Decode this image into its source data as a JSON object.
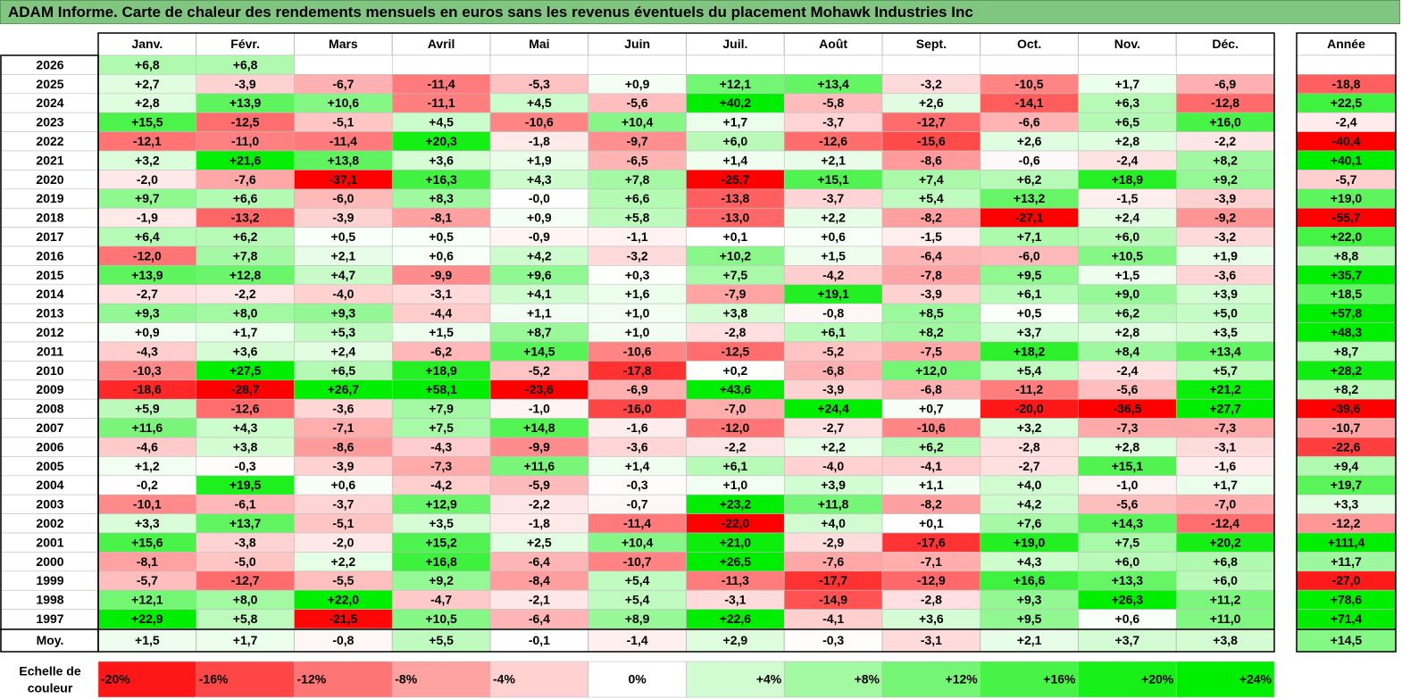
{
  "title": "ADAM Informe. Carte de chaleur des rendements mensuels en euros sans les revenus éventuels du placement Mohawk Industries Inc",
  "chart_data": {
    "type": "heatmap",
    "title": "ADAM Informe. Carte de chaleur des rendements mensuels en euros sans les revenus éventuels du placement Mohawk Industries Inc",
    "months": [
      "Janv.",
      "Févr.",
      "Mars",
      "Avril",
      "Mai",
      "Juin",
      "Juil.",
      "Août",
      "Sept.",
      "Oct.",
      "Nov.",
      "Déc."
    ],
    "year_header": "Année",
    "rows": [
      {
        "year": "2026",
        "values": [
          "+6,8",
          "+6,8",
          null,
          null,
          null,
          null,
          null,
          null,
          null,
          null,
          null,
          null
        ],
        "annual": null
      },
      {
        "year": "2025",
        "values": [
          "+2,7",
          "-3,9",
          "-6,7",
          "-11,4",
          "-5,3",
          "+0,9",
          "+12,1",
          "+13,4",
          "-3,2",
          "-10,5",
          "+1,7",
          "-6,9"
        ],
        "annual": "-18,8"
      },
      {
        "year": "2024",
        "values": [
          "+2,8",
          "+13,9",
          "+10,6",
          "-11,1",
          "+4,5",
          "-5,6",
          "+40,2",
          "-5,8",
          "+2,6",
          "-14,1",
          "+6,3",
          "-12,8"
        ],
        "annual": "+22,5"
      },
      {
        "year": "2023",
        "values": [
          "+15,5",
          "-12,5",
          "-5,1",
          "+4,5",
          "-10,6",
          "+10,4",
          "+1,7",
          "-3,7",
          "-12,7",
          "-6,6",
          "+6,5",
          "+16,0"
        ],
        "annual": "-2,4"
      },
      {
        "year": "2022",
        "values": [
          "-12,1",
          "-11,0",
          "-11,4",
          "+20,3",
          "-1,8",
          "-9,7",
          "+6,0",
          "-12,6",
          "-15,6",
          "+2,6",
          "+2,8",
          "-2,2"
        ],
        "annual": "-40,4"
      },
      {
        "year": "2021",
        "values": [
          "+3,2",
          "+21,6",
          "+13,8",
          "+3,6",
          "+1,9",
          "-6,5",
          "+1,4",
          "+2,1",
          "-8,6",
          "-0,6",
          "-2,4",
          "+8,2"
        ],
        "annual": "+40,1"
      },
      {
        "year": "2020",
        "values": [
          "-2,0",
          "-7,6",
          "-37,1",
          "+16,3",
          "+4,3",
          "+7,8",
          "-25,7",
          "+15,1",
          "+7,4",
          "+6,2",
          "+18,9",
          "+9,2"
        ],
        "annual": "-5,7"
      },
      {
        "year": "2019",
        "values": [
          "+9,7",
          "+6,6",
          "-6,0",
          "+8,3",
          "-0,0",
          "+6,6",
          "-13,8",
          "-3,7",
          "+5,4",
          "+13,2",
          "-1,5",
          "-3,9"
        ],
        "annual": "+19,0"
      },
      {
        "year": "2018",
        "values": [
          "-1,9",
          "-13,2",
          "-3,9",
          "-8,1",
          "+0,9",
          "+5,8",
          "-13,0",
          "+2,2",
          "-8,2",
          "-27,1",
          "+2,4",
          "-9,2"
        ],
        "annual": "-55,7"
      },
      {
        "year": "2017",
        "values": [
          "+6,4",
          "+6,2",
          "+0,5",
          "+0,5",
          "-0,9",
          "-1,1",
          "+0,1",
          "+0,6",
          "-1,5",
          "+7,1",
          "+6,0",
          "-3,2"
        ],
        "annual": "+22,0"
      },
      {
        "year": "2016",
        "values": [
          "-12,0",
          "+7,8",
          "+2,1",
          "+0,6",
          "+4,2",
          "-3,2",
          "+10,2",
          "+1,5",
          "-6,4",
          "-6,0",
          "+10,5",
          "+1,9"
        ],
        "annual": "+8,8"
      },
      {
        "year": "2015",
        "values": [
          "+13,9",
          "+12,8",
          "+4,7",
          "-9,9",
          "+9,6",
          "+0,3",
          "+7,5",
          "-4,2",
          "-7,8",
          "+9,5",
          "+1,5",
          "-3,6"
        ],
        "annual": "+35,7"
      },
      {
        "year": "2014",
        "values": [
          "-2,7",
          "-2,2",
          "-4,0",
          "-3,1",
          "+4,1",
          "+1,6",
          "-7,9",
          "+19,1",
          "-3,9",
          "+6,1",
          "+9,0",
          "+3,9"
        ],
        "annual": "+18,5"
      },
      {
        "year": "2013",
        "values": [
          "+9,3",
          "+8,0",
          "+9,3",
          "-4,4",
          "+1,1",
          "+1,0",
          "+3,8",
          "-0,8",
          "+8,5",
          "+0,5",
          "+6,2",
          "+5,0"
        ],
        "annual": "+57,8"
      },
      {
        "year": "2012",
        "values": [
          "+0,9",
          "+1,7",
          "+5,3",
          "+1,5",
          "+8,7",
          "+1,0",
          "-2,8",
          "+6,1",
          "+8,2",
          "+3,7",
          "+2,8",
          "+3,5"
        ],
        "annual": "+48,3"
      },
      {
        "year": "2011",
        "values": [
          "-4,3",
          "+3,6",
          "+2,4",
          "-6,2",
          "+14,5",
          "-10,6",
          "-12,5",
          "-5,2",
          "-7,5",
          "+18,2",
          "+8,4",
          "+13,4"
        ],
        "annual": "+8,7"
      },
      {
        "year": "2010",
        "values": [
          "-10,3",
          "+27,5",
          "+6,5",
          "+18,9",
          "-5,2",
          "-17,8",
          "+0,2",
          "-6,8",
          "+12,0",
          "+5,4",
          "-2,4",
          "+5,7"
        ],
        "annual": "+28,2"
      },
      {
        "year": "2009",
        "values": [
          "-18,6",
          "-28,7",
          "+26,7",
          "+58,1",
          "-23,6",
          "-6,9",
          "+43,6",
          "-3,9",
          "-6,8",
          "-11,2",
          "-5,6",
          "+21,2"
        ],
        "annual": "+8,2"
      },
      {
        "year": "2008",
        "values": [
          "+5,9",
          "-12,6",
          "-3,6",
          "+7,9",
          "-1,0",
          "-16,0",
          "-7,0",
          "+24,4",
          "+0,7",
          "-20,0",
          "-36,5",
          "+27,7"
        ],
        "annual": "-39,6"
      },
      {
        "year": "2007",
        "values": [
          "+11,6",
          "+4,3",
          "-7,1",
          "+7,5",
          "+14,8",
          "-1,6",
          "-12,0",
          "-2,7",
          "-10,6",
          "+3,2",
          "-7,3",
          "-7,3"
        ],
        "annual": "-10,7"
      },
      {
        "year": "2006",
        "values": [
          "-4,6",
          "+3,8",
          "-8,6",
          "-4,3",
          "-9,9",
          "-3,6",
          "-2,2",
          "+2,2",
          "+6,2",
          "-2,8",
          "+2,8",
          "-3,1"
        ],
        "annual": "-22,6"
      },
      {
        "year": "2005",
        "values": [
          "+1,2",
          "-0,3",
          "-3,9",
          "-7,3",
          "+11,6",
          "+1,4",
          "+6,1",
          "-4,0",
          "-4,1",
          "-2,7",
          "+15,1",
          "-1,6"
        ],
        "annual": "+9,4"
      },
      {
        "year": "2004",
        "values": [
          "-0,2",
          "+19,5",
          "+0,6",
          "-4,2",
          "-5,9",
          "-0,3",
          "+1,0",
          "+3,9",
          "+1,1",
          "+4,0",
          "-1,0",
          "+1,7"
        ],
        "annual": "+19,7"
      },
      {
        "year": "2003",
        "values": [
          "-10,1",
          "-6,1",
          "-3,7",
          "+12,9",
          "-2,2",
          "-0,7",
          "+23,2",
          "+11,8",
          "-8,2",
          "+4,2",
          "-5,6",
          "-7,0"
        ],
        "annual": "+3,3"
      },
      {
        "year": "2002",
        "values": [
          "+3,3",
          "+13,7",
          "-5,1",
          "+3,5",
          "-1,8",
          "-11,4",
          "-22,0",
          "+4,0",
          "+0,1",
          "+7,6",
          "+14,3",
          "-12,4"
        ],
        "annual": "-12,2"
      },
      {
        "year": "2001",
        "values": [
          "+15,6",
          "-3,8",
          "-2,0",
          "+15,2",
          "+2,5",
          "+10,4",
          "+21,0",
          "-2,9",
          "-17,6",
          "+19,0",
          "+7,5",
          "+20,2"
        ],
        "annual": "+111,4"
      },
      {
        "year": "2000",
        "values": [
          "-8,1",
          "-5,0",
          "+2,2",
          "+16,8",
          "-6,4",
          "-10,7",
          "+26,5",
          "-7,6",
          "-7,1",
          "+4,3",
          "+6,0",
          "+6,8"
        ],
        "annual": "+11,7"
      },
      {
        "year": "1999",
        "values": [
          "-5,7",
          "-12,7",
          "-5,5",
          "+9,2",
          "-8,4",
          "+5,4",
          "-11,3",
          "-17,7",
          "-12,9",
          "+16,6",
          "+13,3",
          "+6,0"
        ],
        "annual": "-27,0"
      },
      {
        "year": "1998",
        "values": [
          "+12,1",
          "+8,0",
          "+22,0",
          "-4,7",
          "-2,1",
          "+5,4",
          "-3,1",
          "-14,9",
          "-2,8",
          "+9,3",
          "+26,3",
          "+11,2"
        ],
        "annual": "+78,6"
      },
      {
        "year": "1997",
        "values": [
          "+22,9",
          "+5,8",
          "-21,5",
          "+10,5",
          "-6,4",
          "+8,9",
          "+22,6",
          "-4,1",
          "+3,6",
          "+9,5",
          "+0,6",
          "+11,0"
        ],
        "annual": "+71,4"
      }
    ],
    "average": {
      "label": "Moy.",
      "values": [
        "+1,5",
        "+1,7",
        "-0,8",
        "+5,5",
        "-0,1",
        "-1,4",
        "+2,9",
        "-0,3",
        "-3,1",
        "+2,1",
        "+3,7",
        "+3,8"
      ],
      "annual": "+14,5"
    },
    "scale": {
      "label_line1": "Echelle de",
      "label_line2": "couleur",
      "steps": [
        {
          "label": "-20%",
          "value": -20
        },
        {
          "label": "-16%",
          "value": -16
        },
        {
          "label": "-12%",
          "value": -12
        },
        {
          "label": "-8%",
          "value": -8
        },
        {
          "label": "-4%",
          "value": -4
        },
        {
          "label": "0%",
          "value": 0
        },
        {
          "label": "+4%",
          "value": 4
        },
        {
          "label": "+8%",
          "value": 8
        },
        {
          "label": "+12%",
          "value": 12
        },
        {
          "label": "+16%",
          "value": 16
        },
        {
          "label": "+20%",
          "value": 20
        },
        {
          "label": "+24%",
          "value": 24
        }
      ]
    },
    "colors": {
      "negative_max": "#ff0000",
      "neutral": "#ffffff",
      "positive_max": "#00ee00",
      "title_bg": "#80c680",
      "grid": "#bfbfbf"
    }
  }
}
